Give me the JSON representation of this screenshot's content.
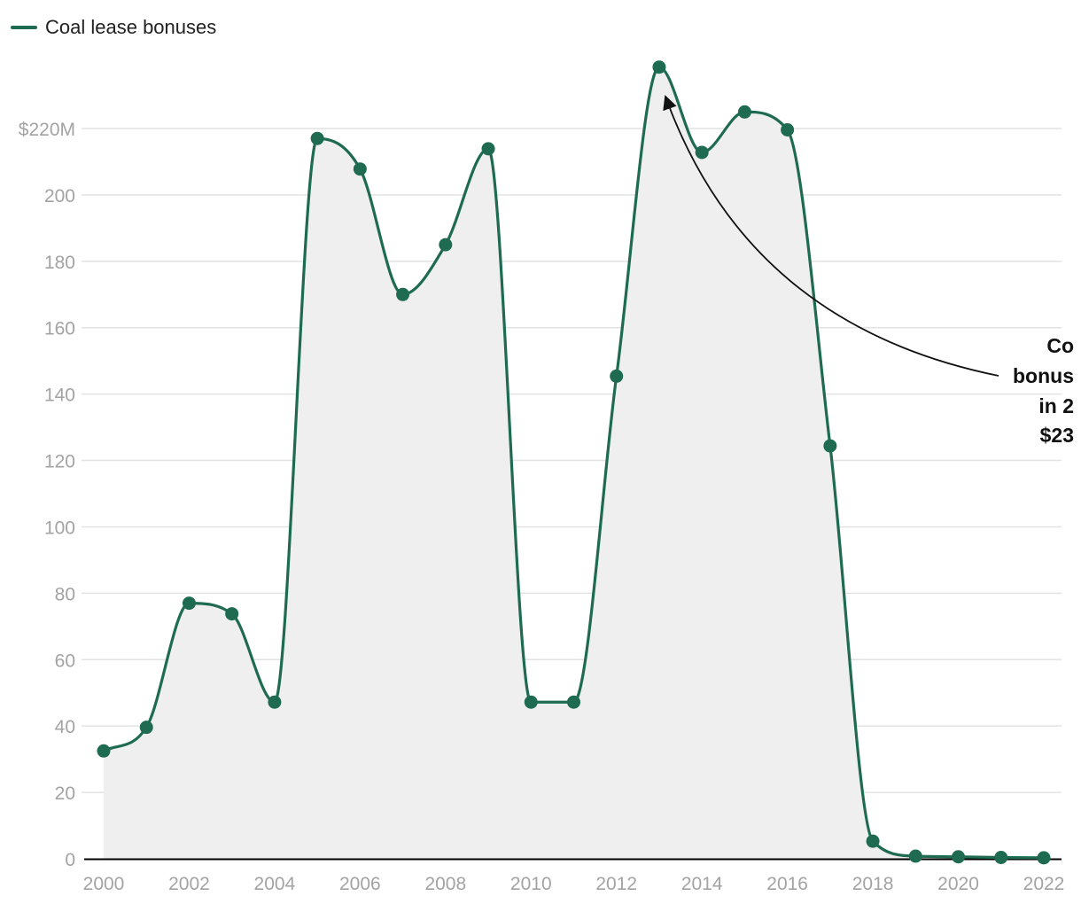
{
  "legend": {
    "label": "Coal lease bonuses"
  },
  "colors": {
    "line": "#1e6b52",
    "area": "#efefef",
    "grid": "#e2e2e2",
    "axis": "#000000"
  },
  "chart_data": {
    "type": "area",
    "x": [
      2000,
      2001,
      2002,
      2003,
      2004,
      2005,
      2006,
      2007,
      2008,
      2009,
      2010,
      2011,
      2012,
      2013,
      2014,
      2015,
      2016,
      2017,
      2018,
      2019,
      2020,
      2021,
      2022
    ],
    "series": [
      {
        "name": "Coal lease bonuses",
        "values": [
          32.5,
          39.6,
          77,
          73.8,
          47.2,
          217,
          207.8,
          170,
          185,
          213.9,
          47.2,
          47.2,
          145.4,
          238.5,
          212.8,
          225,
          219.6,
          124.4,
          5.3,
          0.8,
          0.6,
          0.4,
          0.3
        ]
      }
    ],
    "y_ticks": [
      0,
      20,
      40,
      60,
      80,
      100,
      120,
      140,
      160,
      180,
      200,
      220
    ],
    "y_tick_labels": [
      "0",
      "20",
      "40",
      "60",
      "80",
      "100",
      "120",
      "140",
      "160",
      "180",
      "200",
      "$220M"
    ],
    "x_ticks": [
      2000,
      2002,
      2004,
      2006,
      2008,
      2010,
      2012,
      2014,
      2016,
      2018,
      2020,
      2022
    ],
    "x_tick_labels": [
      "2000",
      "2002",
      "2004",
      "2006",
      "2008",
      "2010",
      "2012",
      "2014",
      "2016",
      "2018",
      "2020",
      "2022"
    ],
    "ylim": [
      0,
      240
    ],
    "grid": true,
    "legend_position": "top-left",
    "annotation": {
      "lines": [
        "Co",
        "bonus",
        "in 2",
        "$23"
      ],
      "target_x": 2013
    }
  }
}
